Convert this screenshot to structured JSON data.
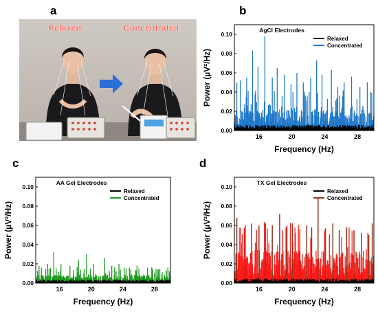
{
  "panels": {
    "a": {
      "letter": "a",
      "relaxed_label": "Relaxed",
      "concentrated_label": "Concentrated"
    },
    "b": {
      "letter": "b"
    },
    "c": {
      "letter": "c"
    },
    "d": {
      "letter": "d"
    }
  },
  "colors": {
    "relaxed": "#000000",
    "agcl": "#1f78c8",
    "aa": "#1e9a1e",
    "tx": "#ff1a1a",
    "tx_peaks": "#8b3a1a",
    "photo_label": "#ff5a4e",
    "arrow": "#2a6fd6"
  },
  "chart_data": [
    {
      "id": "b",
      "type": "bar",
      "title": "AgCl Electrodes",
      "xlabel": "Frequency (Hz)",
      "ylabel": "Power (µV²/Hz)",
      "xlim": [
        13,
        30
      ],
      "ylim": [
        0,
        0.11
      ],
      "xticks": [
        16,
        20,
        24,
        28
      ],
      "yticks": [
        "0.00",
        "0.02",
        "0.04",
        "0.06",
        "0.08",
        "0.10"
      ],
      "legend": "top-right",
      "series": [
        {
          "name": "Relaxed",
          "level": 0.005
        },
        {
          "name": "Concentrated",
          "base": 0.022,
          "peaks": [
            [
              13.3,
              0.05
            ],
            [
              13.7,
              0.052
            ],
            [
              14.5,
              0.055
            ],
            [
              15.2,
              0.083
            ],
            [
              15.9,
              0.066
            ],
            [
              16.7,
              0.098
            ],
            [
              17.6,
              0.055
            ],
            [
              18.2,
              0.065
            ],
            [
              19.1,
              0.058
            ],
            [
              19.9,
              0.048
            ],
            [
              20.6,
              0.06
            ],
            [
              21.4,
              0.05
            ],
            [
              22.3,
              0.055
            ],
            [
              23.0,
              0.073
            ],
            [
              23.7,
              0.058
            ],
            [
              24.8,
              0.063
            ],
            [
              25.6,
              0.045
            ],
            [
              26.4,
              0.05
            ],
            [
              27.3,
              0.056
            ],
            [
              28.3,
              0.045
            ],
            [
              29.2,
              0.05
            ]
          ]
        }
      ]
    },
    {
      "id": "c",
      "type": "bar",
      "title": "AA Gel Electrodes",
      "xlabel": "Frequency (Hz)",
      "ylabel": "Power (µV²/Hz)",
      "xlim": [
        13,
        30
      ],
      "ylim": [
        0,
        0.11
      ],
      "xticks": [
        16,
        20,
        24,
        28
      ],
      "yticks": [
        "0.00",
        "0.02",
        "0.04",
        "0.06",
        "0.08",
        "0.10"
      ],
      "legend": "top-right",
      "series": [
        {
          "name": "Relaxed",
          "level": 0.003
        },
        {
          "name": "Concentrated",
          "base": 0.009,
          "peaks": [
            [
              13.4,
              0.018
            ],
            [
              14.5,
              0.02
            ],
            [
              15.3,
              0.032
            ],
            [
              16.2,
              0.02
            ],
            [
              17.3,
              0.018
            ],
            [
              18.4,
              0.024
            ],
            [
              19.4,
              0.03
            ],
            [
              20.3,
              0.02
            ],
            [
              21.7,
              0.026
            ],
            [
              22.6,
              0.018
            ],
            [
              23.5,
              0.02
            ],
            [
              24.8,
              0.016
            ],
            [
              25.8,
              0.018
            ],
            [
              27.1,
              0.016
            ],
            [
              28.4,
              0.015
            ],
            [
              29.5,
              0.013
            ]
          ]
        }
      ]
    },
    {
      "id": "d",
      "type": "bar",
      "title": "TX Gel Electrodes",
      "xlabel": "Frequency (Hz)",
      "ylabel": "Power (µV²/Hz)",
      "xlim": [
        13,
        30
      ],
      "ylim": [
        0,
        0.11
      ],
      "xticks": [
        16,
        20,
        24,
        28
      ],
      "yticks": [
        "0.00",
        "0.02",
        "0.04",
        "0.06",
        "0.08",
        "0.10"
      ],
      "legend": "top-right",
      "series": [
        {
          "name": "Relaxed",
          "level": 0.004
        },
        {
          "name": "Concentrated",
          "base": 0.034,
          "peaks": [
            [
              13.3,
              0.068
            ],
            [
              14.3,
              0.06
            ],
            [
              15.1,
              0.062
            ],
            [
              16.0,
              0.06
            ],
            [
              16.8,
              0.062
            ],
            [
              17.6,
              0.06
            ],
            [
              18.5,
              0.072
            ],
            [
              19.3,
              0.058
            ],
            [
              20.1,
              0.062
            ],
            [
              21.0,
              0.056
            ],
            [
              21.8,
              0.06
            ],
            [
              22.4,
              0.058
            ],
            [
              23.2,
              0.088
            ],
            [
              24.1,
              0.057
            ],
            [
              25.0,
              0.062
            ],
            [
              25.8,
              0.055
            ],
            [
              26.7,
              0.058
            ],
            [
              27.6,
              0.055
            ],
            [
              28.5,
              0.052
            ],
            [
              29.4,
              0.05
            ],
            [
              29.8,
              0.062
            ]
          ]
        }
      ]
    }
  ]
}
